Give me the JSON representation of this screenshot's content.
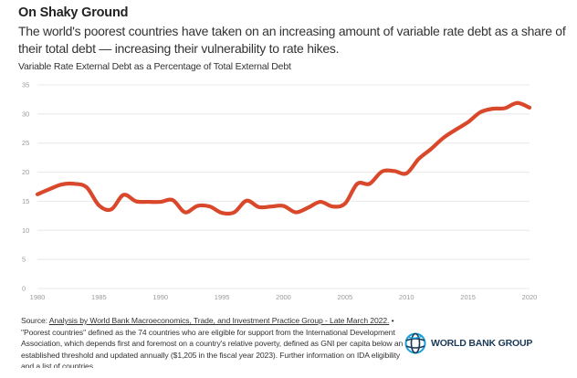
{
  "header": {
    "title": "On Shaky Ground",
    "subtitle": "The world's poorest countries have taken on an increasing amount of variable rate debt as a share of their total debt — increasing their vulnerability to rate hikes.",
    "axis_description": "Variable Rate External Debt as a Percentage of Total External Debt"
  },
  "footer": {
    "source_prefix": "Source: ",
    "source_link": "Analysis by World Bank Macroeconomics, Trade, and Investment Practice Group - Late March 2022.",
    "note": " • \"Poorest countries\" defined as the 74 countries who are eligible for support from the International Development Association, which depends first and foremost on a country's relative poverty, defined as GNI per capita below an established threshold and updated annually ($1,205 in the fiscal year 2023). Further information on IDA eligibility and a list of countries..."
  },
  "logo": {
    "text": "WORLD BANK GROUP",
    "icon": "globe-icon",
    "color": "#1b3a57",
    "accent": "#1aa0d8"
  },
  "chart_data": {
    "type": "line",
    "title": "On Shaky Ground",
    "xlabel": "",
    "ylabel": "Variable Rate External Debt as a Percentage of Total External Debt",
    "xlim": [
      1980,
      2020
    ],
    "ylim": [
      0,
      35
    ],
    "x_ticks": [
      1980,
      1985,
      1990,
      1995,
      2000,
      2005,
      2010,
      2015,
      2020
    ],
    "y_ticks": [
      0,
      5,
      10,
      15,
      20,
      25,
      30,
      35
    ],
    "grid": "horizontal",
    "legend": "none",
    "series": [
      {
        "name": "Variable rate external debt (% of total external debt)",
        "color": "#d9482b",
        "x": [
          1980,
          1981,
          1982,
          1983,
          1984,
          1985,
          1986,
          1987,
          1988,
          1989,
          1990,
          1991,
          1992,
          1993,
          1994,
          1995,
          1996,
          1997,
          1998,
          1999,
          2000,
          2001,
          2002,
          2003,
          2004,
          2005,
          2006,
          2007,
          2008,
          2009,
          2010,
          2011,
          2012,
          2013,
          2014,
          2015,
          2016,
          2017,
          2018,
          2019,
          2020
        ],
        "values": [
          16.2,
          17.1,
          17.9,
          18.0,
          17.4,
          14.3,
          13.6,
          16.1,
          15.0,
          14.9,
          14.9,
          15.2,
          13.1,
          14.2,
          14.1,
          13.0,
          13.1,
          15.1,
          14.0,
          14.1,
          14.2,
          13.1,
          13.9,
          14.9,
          14.1,
          14.6,
          18.0,
          18.0,
          20.1,
          20.2,
          19.8,
          22.3,
          24.0,
          25.9,
          27.3,
          28.6,
          30.3,
          30.9,
          31.0,
          31.9,
          31.1
        ]
      }
    ]
  }
}
